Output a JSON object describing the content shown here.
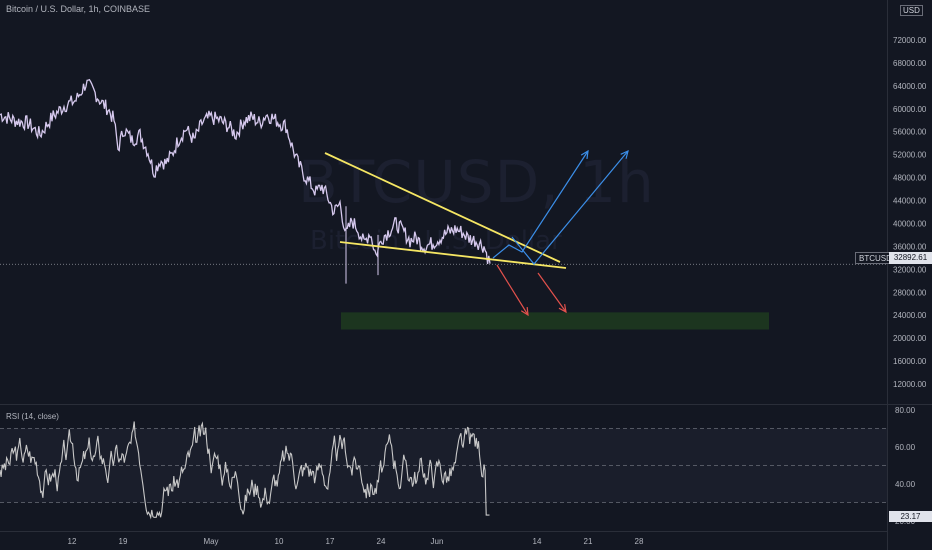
{
  "header": {
    "title": "Bitcoin / U.S. Dollar, 1h, COINBASE",
    "currency": "USD"
  },
  "watermark": {
    "symbol": "BTCUSD, 1h",
    "name": "Bitcoin / U.S. Dollar"
  },
  "price_tag": {
    "symbol": "BTCUSD",
    "value": "32892.61"
  },
  "rsi": {
    "label": "RSI (14, close)",
    "value": "23.17"
  },
  "colors": {
    "background": "#131722",
    "candle": "#d6c9ee",
    "rsi_line": "#c8c8c8",
    "wedge": "#f5e663",
    "up_arrow": "#3b8ee8",
    "down_arrow": "#e2514c",
    "zone": "#1f3b1f"
  },
  "chart_data": [
    {
      "type": "line",
      "title": "Bitcoin / U.S. Dollar, 1h, COINBASE",
      "x_ticks": [
        "12",
        "19",
        "May",
        "10",
        "17",
        "24",
        "Jun",
        "14",
        "21",
        "28"
      ],
      "y_ticks": [
        "72000.00",
        "68000.00",
        "64000.00",
        "60000.00",
        "56000.00",
        "52000.00",
        "48000.00",
        "44000.00",
        "40000.00",
        "36000.00",
        "32000.00",
        "28000.00",
        "24000.00",
        "20000.00",
        "16000.00",
        "12000.00"
      ],
      "ylim": [
        8000,
        74500
      ],
      "current_price": 32892.61,
      "series": [
        {
          "values": [
            [
              0,
              59000
            ],
            [
              14,
              58000
            ],
            [
              28,
              57500
            ],
            [
              40,
              55500
            ],
            [
              52,
              58500
            ],
            [
              64,
              60500
            ],
            [
              76,
              61500
            ],
            [
              86,
              64500
            ],
            [
              94,
              63000
            ],
            [
              102,
              61000
            ],
            [
              108,
              60000
            ],
            [
              114,
              58000
            ],
            [
              118,
              53000
            ],
            [
              124,
              56500
            ],
            [
              132,
              54500
            ],
            [
              140,
              55500
            ],
            [
              148,
              52500
            ],
            [
              154,
              49000
            ],
            [
              160,
              51000
            ],
            [
              166,
              50500
            ],
            [
              172,
              52000
            ],
            [
              178,
              54500
            ],
            [
              186,
              56500
            ],
            [
              194,
              54500
            ],
            [
              202,
              57500
            ],
            [
              210,
              58500
            ],
            [
              220,
              58000
            ],
            [
              228,
              57000
            ],
            [
              236,
              55500
            ],
            [
              244,
              58000
            ],
            [
              252,
              58500
            ],
            [
              260,
              57500
            ],
            [
              266,
              59000
            ],
            [
              272,
              58500
            ],
            [
              280,
              57500
            ],
            [
              286,
              57000
            ],
            [
              292,
              53500
            ],
            [
              298,
              50500
            ],
            [
              304,
              48500
            ],
            [
              310,
              47000
            ],
            [
              316,
              45500
            ],
            [
              322,
              46500
            ],
            [
              328,
              44500
            ],
            [
              334,
              42000
            ],
            [
              340,
              43500
            ],
            [
              346,
              38000
            ],
            [
              352,
              40500
            ],
            [
              358,
              39000
            ],
            [
              364,
              36500
            ],
            [
              370,
              38500
            ],
            [
              376,
              34500
            ],
            [
              382,
              37500
            ],
            [
              388,
              38500
            ],
            [
              396,
              40000
            ],
            [
              404,
              38500
            ],
            [
              410,
              37000
            ],
            [
              416,
              37500
            ],
            [
              424,
              36000
            ],
            [
              432,
              36500
            ],
            [
              440,
              37500
            ],
            [
              448,
              38500
            ],
            [
              456,
              39000
            ],
            [
              462,
              38500
            ],
            [
              468,
              37500
            ],
            [
              476,
              37000
            ],
            [
              484,
              36000
            ],
            [
              490,
              33000
            ]
          ]
        }
      ],
      "annotations": {
        "wedge_upper": [
          [
            42,
            52500
          ],
          [
            59,
            35000
          ]
        ],
        "wedge_lower": [
          [
            26,
            37000
          ],
          [
            60,
            30500
          ]
        ],
        "support_zone": [
          21500,
          24500
        ],
        "projections": [
          "two bullish breakout arrows toward 50000",
          "two bearish arrows toward 23500"
        ]
      }
    },
    {
      "type": "line",
      "title": "RSI (14, close)",
      "y_ticks": [
        "80.00",
        "60.00",
        "40.00",
        "20.00"
      ],
      "ylim": [
        18,
        82
      ],
      "bands": [
        70,
        50,
        30
      ],
      "current_value": 23.17
    }
  ]
}
